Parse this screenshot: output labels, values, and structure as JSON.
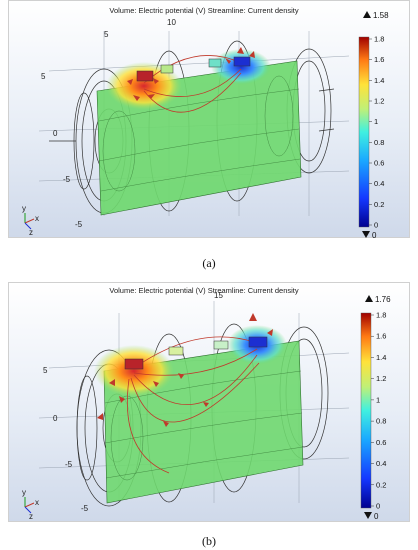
{
  "panels": [
    {
      "title": "Volume: Electric potential (V)  Streamline: Current density",
      "caption": "(a)",
      "max_label": "1.58",
      "min_label": "0",
      "axis_ticks_top": [
        "5",
        "10"
      ],
      "axis_ticks_left": [
        "5",
        "0",
        "-5",
        "-5"
      ],
      "colorbar_ticks": [
        "1.8",
        "1.6",
        "1.4",
        "1.2",
        "1",
        "0.8",
        "0.6",
        "0.4",
        "0.2",
        "0"
      ],
      "axes_triad": {
        "x": "x",
        "y": "y",
        "z": "z"
      }
    },
    {
      "title": "Volume: Electric potential (V)  Streamline: Current density",
      "caption": "(b)",
      "max_label": "1.76",
      "min_label": "0",
      "axis_ticks_top": [
        "15"
      ],
      "axis_ticks_left": [
        "5",
        "0",
        "-5",
        "-5"
      ],
      "colorbar_ticks": [
        "1.8",
        "1.6",
        "1.4",
        "1.2",
        "1",
        "0.8",
        "0.6",
        "0.4",
        "0.2",
        "0"
      ],
      "axes_triad": {
        "x": "x",
        "y": "y",
        "z": "z"
      }
    }
  ],
  "colors": {
    "body_green": "#6fd86f",
    "hot": "#d7262e",
    "cold": "#1c2fd1",
    "streamline": "#c0392b"
  }
}
